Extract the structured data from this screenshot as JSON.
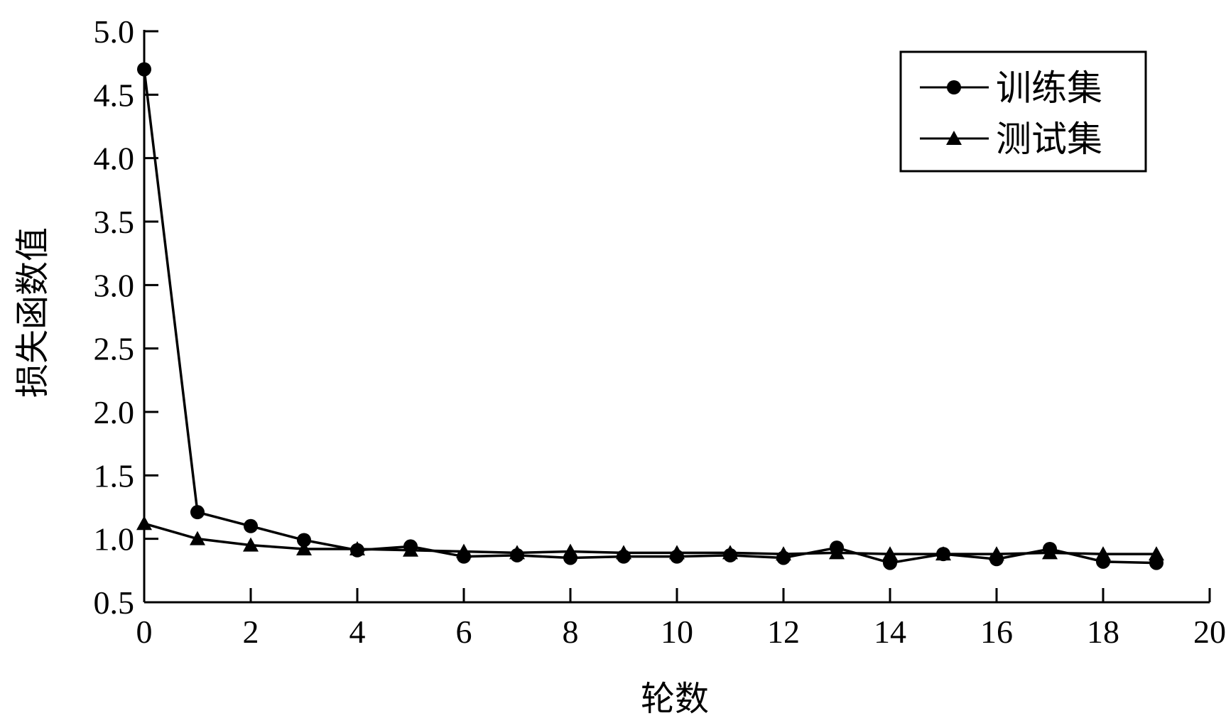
{
  "chart_data": {
    "type": "line",
    "title": "",
    "xlabel": "轮数",
    "ylabel": "损失函数值",
    "xlim": [
      0,
      20
    ],
    "ylim": [
      0.5,
      5.0
    ],
    "xticks": [
      "0",
      "2",
      "4",
      "6",
      "8",
      "10",
      "12",
      "14",
      "16",
      "18",
      "20"
    ],
    "yticks": [
      "0.5",
      "1.0",
      "1.5",
      "2.0",
      "2.5",
      "3.0",
      "3.5",
      "4.0",
      "4.5",
      "5.0"
    ],
    "grid": false,
    "legend_position": "top-right",
    "x": [
      0,
      1,
      2,
      3,
      4,
      5,
      6,
      7,
      8,
      9,
      10,
      11,
      12,
      13,
      14,
      15,
      16,
      17,
      18,
      19
    ],
    "series": [
      {
        "name": "训练集",
        "marker": "circle",
        "values": [
          4.7,
          1.21,
          1.1,
          0.99,
          0.91,
          0.94,
          0.86,
          0.87,
          0.85,
          0.86,
          0.86,
          0.87,
          0.85,
          0.93,
          0.81,
          0.88,
          0.84,
          0.92,
          0.82,
          0.81
        ]
      },
      {
        "name": "测试集",
        "marker": "triangle",
        "values": [
          1.12,
          1.0,
          0.95,
          0.92,
          0.92,
          0.91,
          0.9,
          0.89,
          0.9,
          0.89,
          0.89,
          0.89,
          0.88,
          0.89,
          0.88,
          0.88,
          0.88,
          0.89,
          0.88,
          0.88
        ]
      }
    ]
  }
}
